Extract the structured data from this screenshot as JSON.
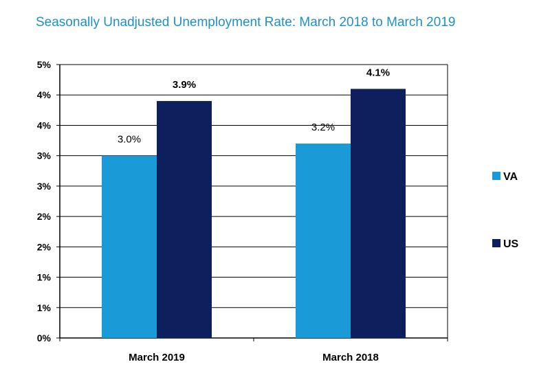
{
  "chart_data": {
    "type": "bar",
    "title": "Seasonally Unadjusted Unemployment Rate:  March 2018 to March 2019",
    "categories": [
      "March 2019",
      "March 2018"
    ],
    "series": [
      {
        "name": "VA",
        "color": "#1a9ad7",
        "values": [
          3.0,
          3.2
        ],
        "labels": [
          "3.0%",
          "3.2%"
        ]
      },
      {
        "name": "US",
        "color": "#0d1f5c",
        "values": [
          3.9,
          4.1
        ],
        "labels": [
          "3.9%",
          "4.1%"
        ]
      }
    ],
    "ylim": [
      0,
      4.5
    ],
    "yticks": [
      {
        "value": 0.0,
        "label": "0%"
      },
      {
        "value": 0.5,
        "label": "1%"
      },
      {
        "value": 1.0,
        "label": "1%"
      },
      {
        "value": 1.5,
        "label": "2%"
      },
      {
        "value": 2.0,
        "label": "2%"
      },
      {
        "value": 2.5,
        "label": "3%"
      },
      {
        "value": 3.0,
        "label": "3%"
      },
      {
        "value": 3.5,
        "label": "4%"
      },
      {
        "value": 4.0,
        "label": "4%"
      },
      {
        "value": 4.5,
        "label": "5%"
      }
    ],
    "xlabel": "",
    "ylabel": "",
    "grid": true,
    "legend": "right"
  }
}
